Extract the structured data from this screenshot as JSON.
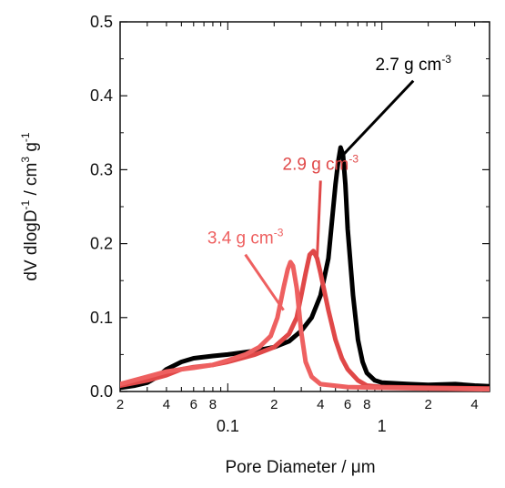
{
  "chart_data": {
    "type": "line",
    "xlabel": "Pore Diameter / μm",
    "ylabel_parts": [
      "dV dlogD",
      "-1",
      "  /  cm",
      "3",
      " g",
      "-1"
    ],
    "xscale": "log",
    "xlim": [
      0.02,
      5
    ],
    "ylim": [
      0,
      0.5
    ],
    "grid": false,
    "yticks": [
      {
        "value": 0.0,
        "label": "0.0"
      },
      {
        "value": 0.1,
        "label": "0.1"
      },
      {
        "value": 0.2,
        "label": "0.2"
      },
      {
        "value": 0.3,
        "label": "0.3"
      },
      {
        "value": 0.4,
        "label": "0.4"
      },
      {
        "value": 0.5,
        "label": "0.5"
      }
    ],
    "xmajor": [
      {
        "value": 0.1,
        "label": "0.1"
      },
      {
        "value": 1,
        "label": "1"
      }
    ],
    "xminor": [
      {
        "value": 0.02,
        "label": "2"
      },
      {
        "value": 0.04,
        "label": "4"
      },
      {
        "value": 0.06,
        "label": "6"
      },
      {
        "value": 0.08,
        "label": "8"
      },
      {
        "value": 0.2,
        "label": "2"
      },
      {
        "value": 0.4,
        "label": "4"
      },
      {
        "value": 0.6,
        "label": "6"
      },
      {
        "value": 0.8,
        "label": "8"
      },
      {
        "value": 2,
        "label": "2"
      },
      {
        "value": 4,
        "label": "4"
      }
    ],
    "series": [
      {
        "color": "#000000",
        "points": [
          [
            0.02,
            0.005
          ],
          [
            0.025,
            0.008
          ],
          [
            0.03,
            0.012
          ],
          [
            0.035,
            0.02
          ],
          [
            0.04,
            0.03
          ],
          [
            0.05,
            0.04
          ],
          [
            0.06,
            0.045
          ],
          [
            0.08,
            0.048
          ],
          [
            0.1,
            0.05
          ],
          [
            0.15,
            0.055
          ],
          [
            0.2,
            0.06
          ],
          [
            0.25,
            0.068
          ],
          [
            0.3,
            0.082
          ],
          [
            0.35,
            0.1
          ],
          [
            0.4,
            0.13
          ],
          [
            0.45,
            0.18
          ],
          [
            0.5,
            0.28
          ],
          [
            0.52,
            0.31
          ],
          [
            0.54,
            0.33
          ],
          [
            0.56,
            0.32
          ],
          [
            0.58,
            0.28
          ],
          [
            0.6,
            0.22
          ],
          [
            0.65,
            0.13
          ],
          [
            0.7,
            0.07
          ],
          [
            0.75,
            0.04
          ],
          [
            0.8,
            0.025
          ],
          [
            0.9,
            0.015
          ],
          [
            1,
            0.012
          ],
          [
            1.5,
            0.01
          ],
          [
            2,
            0.009
          ],
          [
            3,
            0.01
          ],
          [
            4,
            0.008
          ],
          [
            5,
            0.007
          ]
        ]
      },
      {
        "color": "#e04848",
        "points": [
          [
            0.02,
            0.008
          ],
          [
            0.03,
            0.015
          ],
          [
            0.04,
            0.022
          ],
          [
            0.05,
            0.03
          ],
          [
            0.06,
            0.033
          ],
          [
            0.08,
            0.036
          ],
          [
            0.1,
            0.04
          ],
          [
            0.15,
            0.05
          ],
          [
            0.2,
            0.06
          ],
          [
            0.25,
            0.078
          ],
          [
            0.28,
            0.1
          ],
          [
            0.3,
            0.13
          ],
          [
            0.32,
            0.16
          ],
          [
            0.34,
            0.185
          ],
          [
            0.36,
            0.19
          ],
          [
            0.38,
            0.18
          ],
          [
            0.4,
            0.16
          ],
          [
            0.45,
            0.11
          ],
          [
            0.5,
            0.07
          ],
          [
            0.55,
            0.045
          ],
          [
            0.6,
            0.03
          ],
          [
            0.7,
            0.015
          ],
          [
            0.8,
            0.008
          ],
          [
            1,
            0.006
          ],
          [
            2,
            0.005
          ],
          [
            5,
            0.004
          ]
        ]
      },
      {
        "color": "#ee6060",
        "points": [
          [
            0.02,
            0.01
          ],
          [
            0.03,
            0.02
          ],
          [
            0.04,
            0.027
          ],
          [
            0.05,
            0.03
          ],
          [
            0.06,
            0.032
          ],
          [
            0.08,
            0.036
          ],
          [
            0.1,
            0.042
          ],
          [
            0.13,
            0.05
          ],
          [
            0.16,
            0.06
          ],
          [
            0.19,
            0.075
          ],
          [
            0.21,
            0.1
          ],
          [
            0.23,
            0.14
          ],
          [
            0.245,
            0.165
          ],
          [
            0.255,
            0.175
          ],
          [
            0.265,
            0.17
          ],
          [
            0.28,
            0.14
          ],
          [
            0.3,
            0.08
          ],
          [
            0.32,
            0.04
          ],
          [
            0.35,
            0.02
          ],
          [
            0.4,
            0.01
          ],
          [
            0.6,
            0.006
          ],
          [
            1,
            0.005
          ],
          [
            2,
            0.004
          ],
          [
            5,
            0.003
          ]
        ]
      }
    ],
    "annotations": [
      {
        "text": "2.7 g cm",
        "sup": "-3",
        "color": "#000000",
        "at": [
          0.56,
          0.32
        ],
        "label_pos": [
          1.6,
          0.435
        ]
      },
      {
        "text": "2.9 g cm",
        "sup": "-3",
        "color": "#e04848",
        "at": [
          0.38,
          0.18
        ],
        "label_pos": [
          0.4,
          0.3
        ]
      },
      {
        "text": "3.4 g cm",
        "sup": "-3",
        "color": "#ee6060",
        "at": [
          0.23,
          0.11
        ],
        "label_pos": [
          0.13,
          0.2
        ]
      }
    ]
  }
}
